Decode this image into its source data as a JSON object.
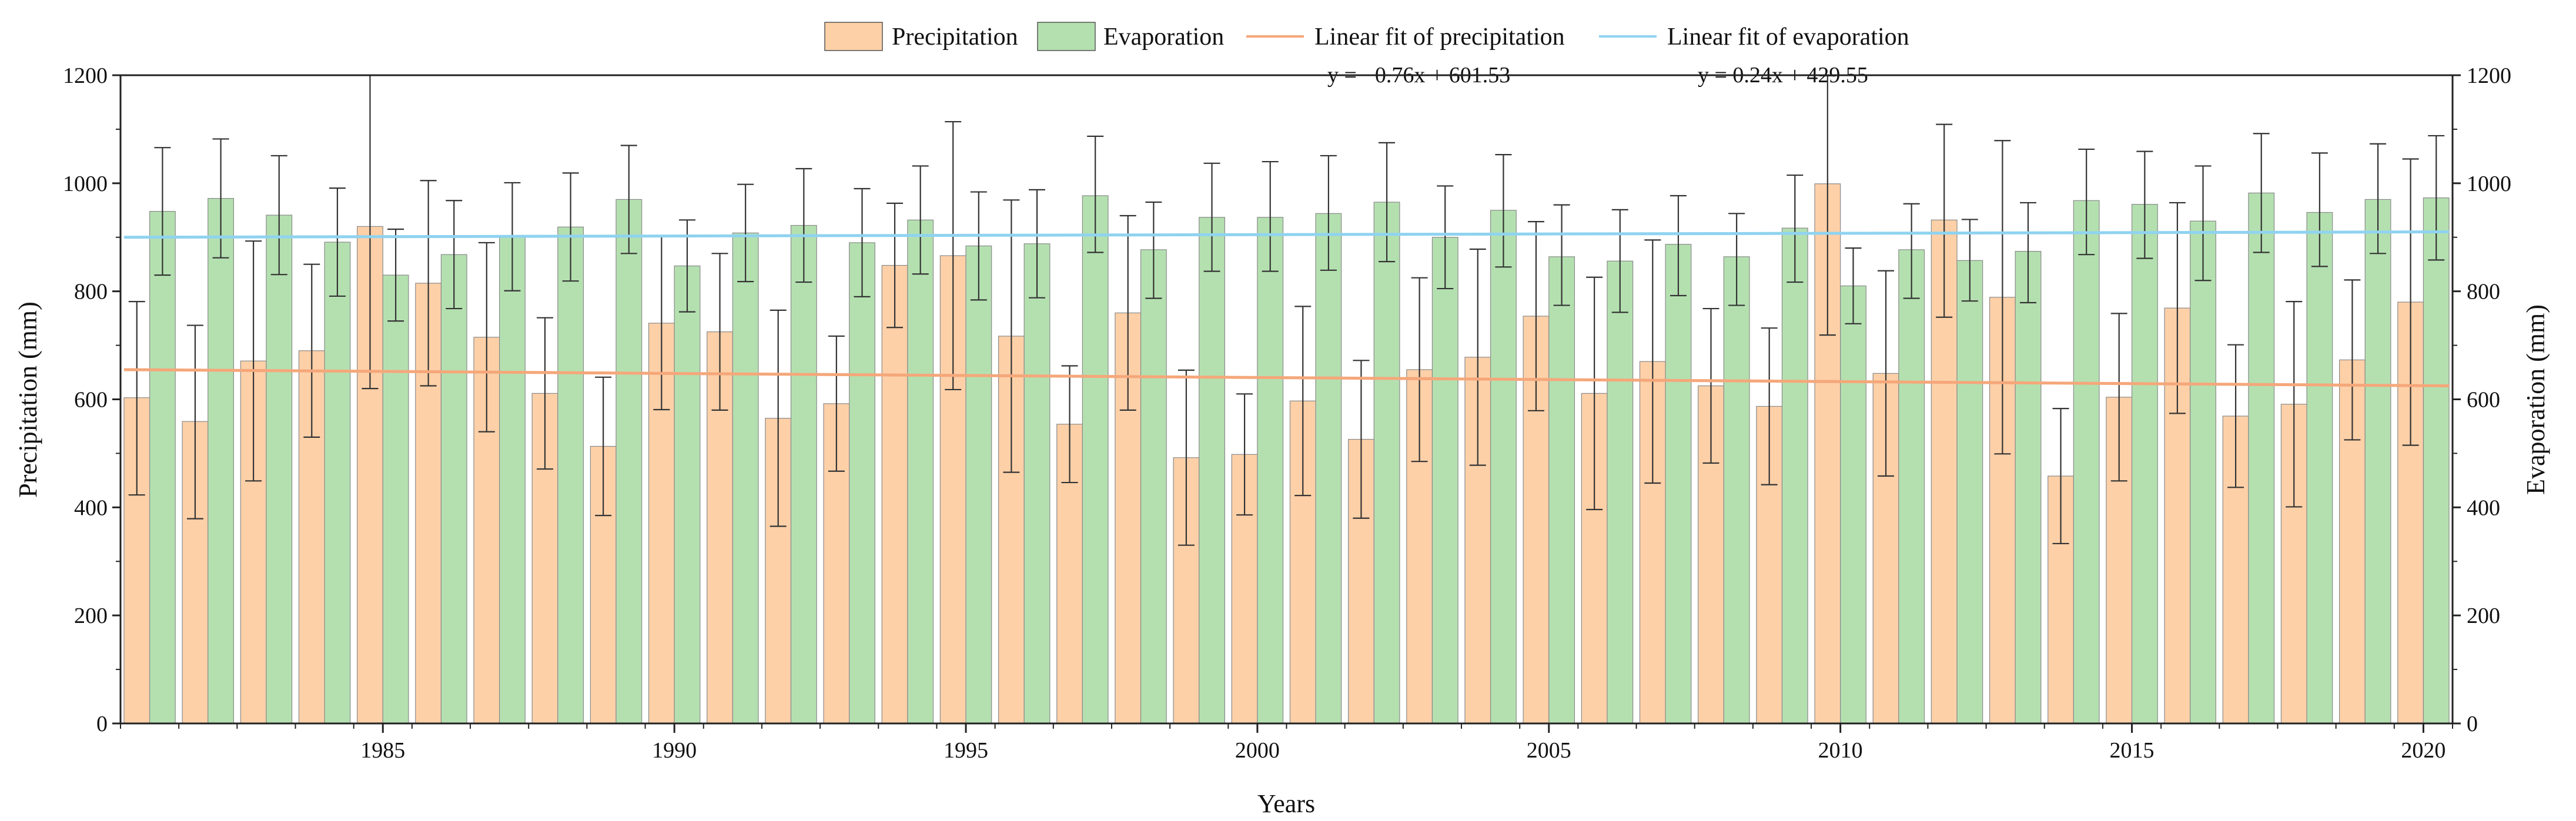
{
  "chart_data": {
    "type": "bar",
    "xlabel": "Years",
    "ylabel_left": "Precipitation (mm)",
    "ylabel_right": "Evaporation (mm)",
    "ylim": [
      0,
      1200
    ],
    "yticks": [
      0,
      200,
      400,
      600,
      800,
      1000,
      1200
    ],
    "xticks": [
      1985,
      1990,
      1995,
      2000,
      2005,
      2010,
      2015,
      2020
    ],
    "x": [
      1981,
      1982,
      1983,
      1984,
      1985,
      1986,
      1987,
      1988,
      1989,
      1990,
      1991,
      1992,
      1993,
      1994,
      1995,
      1996,
      1997,
      1998,
      1999,
      2000,
      2001,
      2002,
      2003,
      2004,
      2005,
      2006,
      2007,
      2008,
      2009,
      2010,
      2011,
      2012,
      2013,
      2014,
      2015,
      2016,
      2017,
      2018,
      2019,
      2020
    ],
    "series": [
      {
        "name": "Precipitation",
        "color": "#fdd0a8",
        "values": [
          603,
          559,
          671,
          690,
          920,
          815,
          715,
          611,
          513,
          741,
          725,
          565,
          592,
          848,
          866,
          717,
          554,
          760,
          492,
          498,
          597,
          526,
          655,
          678,
          754,
          611,
          670,
          625,
          587,
          999,
          648,
          932,
          789,
          458,
          604,
          769,
          569,
          591,
          673,
          780
        ],
        "err_low": [
          180,
          180,
          222,
          160,
          300,
          190,
          175,
          140,
          128,
          160,
          145,
          200,
          125,
          115,
          248,
          252,
          108,
          180,
          162,
          112,
          175,
          146,
          170,
          200,
          175,
          215,
          225,
          143,
          145,
          280,
          190,
          180,
          290,
          125,
          155,
          195,
          132,
          190,
          148,
          265
        ],
        "err_high": [
          178,
          178,
          222,
          160,
          280,
          190,
          175,
          140,
          128,
          160,
          145,
          200,
          125,
          115,
          248,
          252,
          108,
          180,
          162,
          112,
          175,
          146,
          170,
          200,
          175,
          215,
          225,
          143,
          145,
          200,
          190,
          177,
          290,
          125,
          155,
          195,
          132,
          190,
          148,
          265
        ]
      },
      {
        "name": "Evaporation",
        "color": "#b4e0b0",
        "values": [
          948,
          972,
          941,
          891,
          830,
          868,
          901,
          919,
          970,
          847,
          908,
          922,
          890,
          932,
          884,
          888,
          977,
          877,
          937,
          937,
          944,
          965,
          900,
          950,
          864,
          856,
          887,
          864,
          917,
          810,
          877,
          857,
          874,
          968,
          961,
          930,
          982,
          946,
          970,
          973
        ],
        "err_low": [
          118,
          110,
          110,
          100,
          85,
          100,
          100,
          100,
          100,
          85,
          90,
          105,
          100,
          100,
          100,
          100,
          105,
          90,
          100,
          100,
          105,
          110,
          95,
          105,
          90,
          95,
          95,
          90,
          100,
          70,
          90,
          75,
          95,
          100,
          100,
          110,
          110,
          100,
          100,
          115
        ],
        "err_high": [
          118,
          110,
          110,
          100,
          85,
          100,
          100,
          100,
          100,
          85,
          90,
          105,
          100,
          100,
          100,
          100,
          110,
          88,
          100,
          103,
          107,
          110,
          95,
          103,
          96,
          95,
          90,
          80,
          98,
          70,
          85,
          76,
          90,
          95,
          98,
          102,
          110,
          110,
          103,
          115
        ]
      }
    ],
    "fits": [
      {
        "name": "Linear fit of precipitation",
        "color": "#f5a77a",
        "slope": -0.76,
        "intercept": 601.53,
        "equation": "y = −0.76x +  601.53",
        "y_start": 655,
        "y_end": 625
      },
      {
        "name": "Linear fit of evaporation",
        "color": "#8fd3f0",
        "slope": 0.24,
        "intercept": 429.55,
        "equation": "y = 0.24x +  429.55",
        "y_start": 900,
        "y_end": 910
      }
    ],
    "legend_position": "top-center"
  }
}
